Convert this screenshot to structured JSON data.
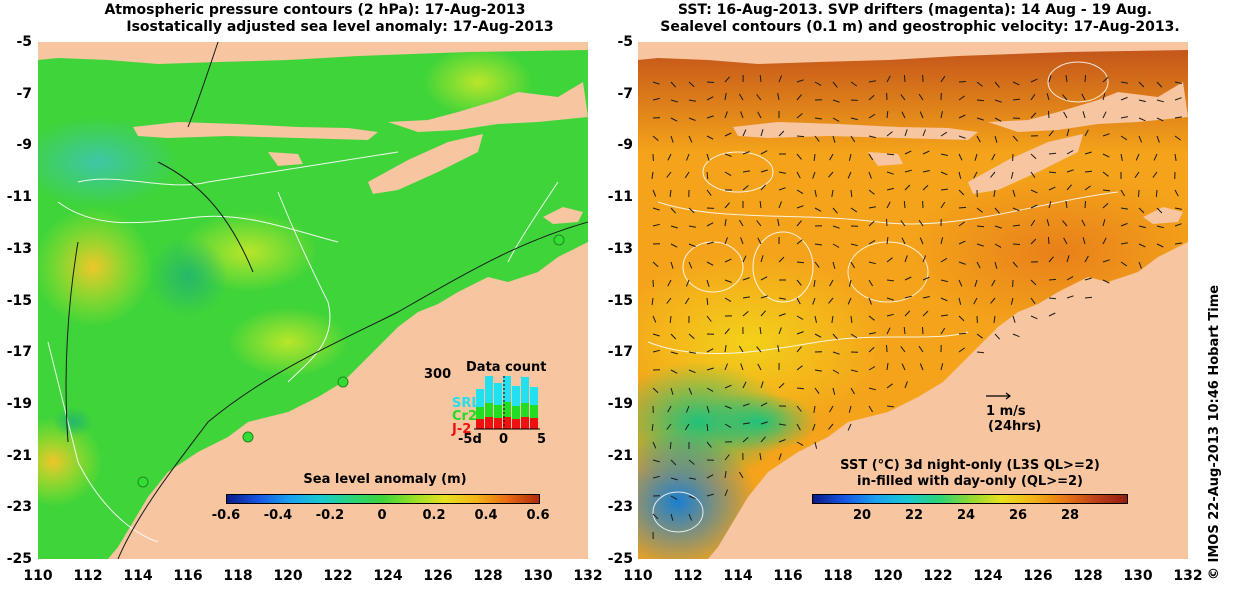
{
  "left_panel": {
    "title_line1": "Atmospheric pressure contours (2 hPa): 17-Aug-2013",
    "title_line2": "Isostatically adjusted sea level anomaly: 17-Aug-2013",
    "colorbar": {
      "title": "Sea level anomaly (m)",
      "ticks": [
        "-0.6",
        "-0.4",
        "-0.2",
        "0",
        "0.2",
        "0.4",
        "0.6"
      ]
    },
    "data_count": {
      "title": "Data count",
      "y_max_label": "300",
      "series": [
        {
          "name": "SRL",
          "color": "#22e0f0"
        },
        {
          "name": "Cr2",
          "color": "#22dd22"
        },
        {
          "name": "J-2",
          "color": "#ee1111"
        }
      ],
      "x_ticks": [
        "-5d",
        "0",
        "5"
      ]
    }
  },
  "right_panel": {
    "title_line1": "SST: 16-Aug-2013. SVP drifters (magenta): 14 Aug - 19 Aug.",
    "title_line2": "Sealevel contours (0.1 m) and geostrophic velocity: 17-Aug-2013.",
    "velocity_scale": {
      "line1": "1 m/s",
      "line2": "(24hrs)"
    },
    "colorbar": {
      "title_line1": "SST (°C)  3d night-only (L3S QL>=2)",
      "title_line2": "in-filled with day-only (QL>=2)",
      "ticks": [
        "20",
        "22",
        "24",
        "26",
        "28"
      ]
    }
  },
  "axes": {
    "y_ticks": [
      "-5",
      "-7",
      "-9",
      "-11",
      "-13",
      "-15",
      "-17",
      "-19",
      "-21",
      "-23",
      "-25"
    ],
    "x_ticks": [
      "110",
      "112",
      "114",
      "116",
      "118",
      "120",
      "122",
      "124",
      "126",
      "128",
      "130",
      "132"
    ]
  },
  "copyright": "© IMOS 22-Aug-2013 10:46 Hobart Time",
  "colors": {
    "land": "#f7c59f",
    "ocean_left": "#3fd43a",
    "ocean_right": "#f4a31a"
  }
}
